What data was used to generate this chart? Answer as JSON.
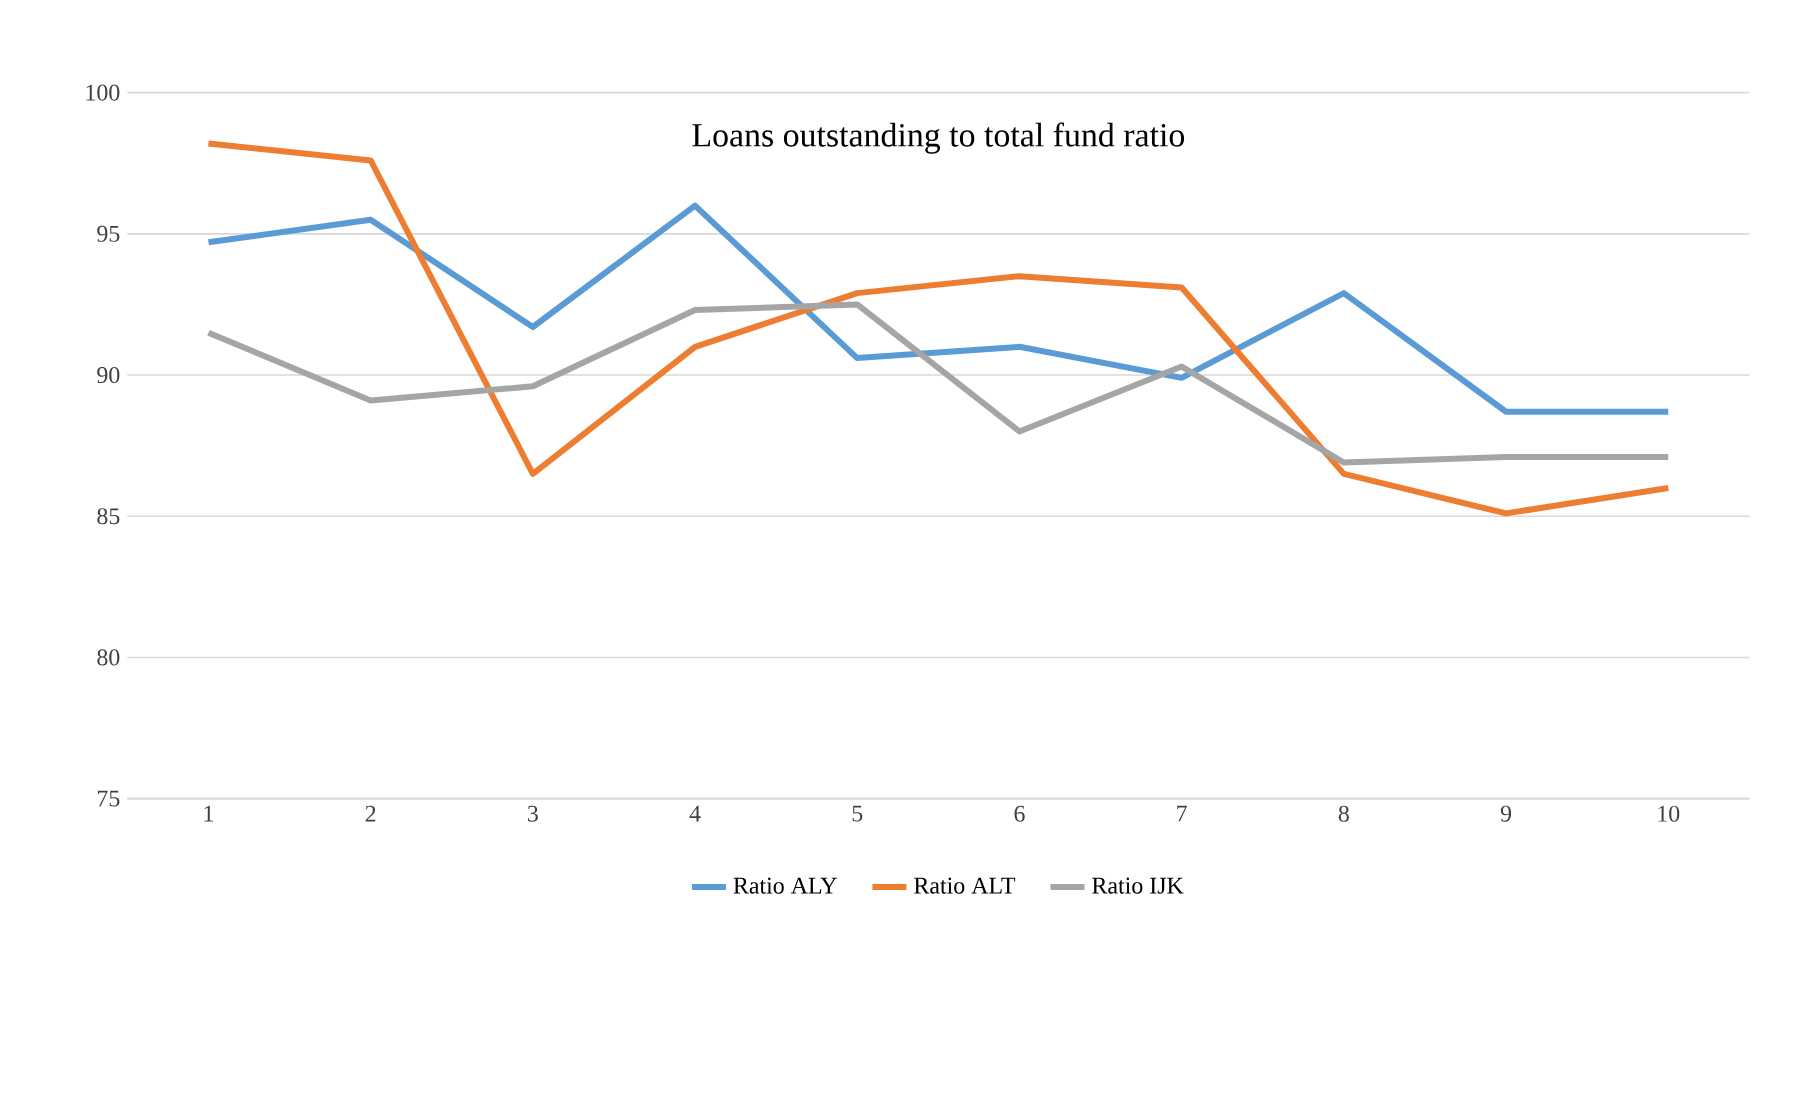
{
  "chart_data": {
    "type": "line",
    "title": "Loans outstanding to total fund ratio",
    "categories": [
      "1",
      "2",
      "3",
      "4",
      "5",
      "6",
      "7",
      "8",
      "9",
      "10"
    ],
    "series": [
      {
        "name": "Ratio ALY",
        "color": "#5b9bd5",
        "values": [
          94.7,
          95.5,
          91.7,
          96.0,
          90.6,
          91.0,
          89.9,
          92.9,
          88.7,
          88.7
        ]
      },
      {
        "name": "Ratio ALT",
        "color": "#ed7d31",
        "values": [
          98.2,
          97.6,
          86.5,
          91.0,
          92.9,
          93.5,
          93.1,
          86.5,
          85.1,
          86.0
        ]
      },
      {
        "name": "Ratio IJK",
        "color": "#a5a5a5",
        "values": [
          91.5,
          89.1,
          89.6,
          92.3,
          92.5,
          88.0,
          90.3,
          86.9,
          87.1,
          87.1
        ]
      }
    ],
    "ylim": [
      75,
      100
    ],
    "yticks": [
      75,
      80,
      85,
      90,
      95,
      100
    ],
    "grid": "y",
    "legend": "bottom",
    "marker": "none",
    "line_style": "solid"
  }
}
